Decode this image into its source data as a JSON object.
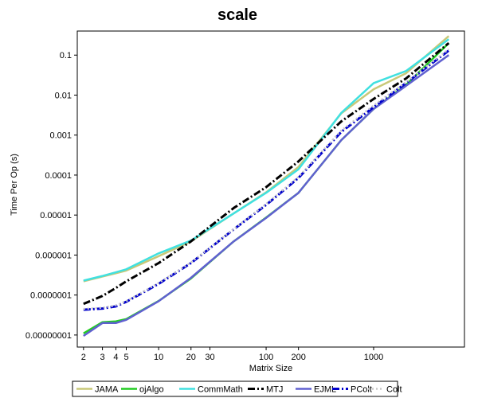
{
  "chart_data": {
    "type": "line",
    "title": "scale",
    "xlabel": "Matrix Size",
    "ylabel": "Time Per Op (s)",
    "x_scale": "log",
    "y_scale": "log",
    "xlim": [
      1.75,
      7000
    ],
    "ylim": [
      5e-09,
      0.4
    ],
    "grid": false,
    "legend_position": "bottom",
    "x_ticks": [
      {
        "value": 2,
        "label": "2"
      },
      {
        "value": 3,
        "label": "3"
      },
      {
        "value": 4,
        "label": "4"
      },
      {
        "value": 5,
        "label": "5"
      },
      {
        "value": 10,
        "label": "10"
      },
      {
        "value": 20,
        "label": "20"
      },
      {
        "value": 30,
        "label": "30"
      },
      {
        "value": 100,
        "label": "100"
      },
      {
        "value": 200,
        "label": "200"
      },
      {
        "value": 1000,
        "label": "1000"
      }
    ],
    "y_ticks": [
      {
        "value": 0.1,
        "label": "0.1"
      },
      {
        "value": 0.01,
        "label": "0.01"
      },
      {
        "value": 0.001,
        "label": "0.001"
      },
      {
        "value": 0.0001,
        "label": "0.0001"
      },
      {
        "value": 1e-05,
        "label": "0.00001"
      },
      {
        "value": 1e-06,
        "label": "0.000001"
      },
      {
        "value": 1e-07,
        "label": "0.0000001"
      },
      {
        "value": 1e-08,
        "label": "0.00000001"
      }
    ],
    "x": [
      2,
      3,
      4,
      5,
      10,
      20,
      50,
      100,
      200,
      500,
      1000,
      2000,
      5000
    ],
    "series": [
      {
        "name": "JAMA",
        "color": "#c8c878",
        "dash": "solid",
        "values": [
          2.2e-07,
          2.9e-07,
          3.5e-07,
          4.1e-07,
          9.4e-07,
          2.2e-06,
          1.1e-05,
          3.7e-05,
          0.00016,
          0.0035,
          0.014,
          0.035,
          0.3
        ]
      },
      {
        "name": "ojAlgo",
        "color": "#22cc22",
        "dash": "solid",
        "values": [
          1.1e-08,
          2.1e-08,
          2.2e-08,
          2.5e-08,
          7.1e-08,
          2.6e-07,
          2.2e-06,
          8.7e-06,
          3.6e-05,
          0.00075,
          0.0045,
          0.018,
          0.2
        ]
      },
      {
        "name": "CommMath",
        "color": "#40e0e0",
        "dash": "solid",
        "values": [
          2.3e-07,
          3e-07,
          3.7e-07,
          4.4e-07,
          1.1e-06,
          2.3e-06,
          1.1e-05,
          3.6e-05,
          0.00014,
          0.0036,
          0.02,
          0.04,
          0.25
        ]
      },
      {
        "name": "MTJ",
        "color": "#000000",
        "dash": "dashdot",
        "values": [
          6e-08,
          9.5e-08,
          1.5e-07,
          2.2e-07,
          6.3e-07,
          2.2e-06,
          1.5e-05,
          5e-05,
          0.00022,
          0.0022,
          0.008,
          0.026,
          0.2
        ]
      },
      {
        "name": "EJML",
        "color": "#6060d0",
        "dash": "solid",
        "values": [
          9.5e-09,
          2e-08,
          2e-08,
          2.4e-08,
          7e-08,
          2.7e-07,
          2.2e-06,
          8.5e-06,
          3.6e-05,
          0.00075,
          0.0045,
          0.017,
          0.1
        ]
      },
      {
        "name": "PColt",
        "color": "#0000cc",
        "dash": "dashdot",
        "values": [
          4.3e-08,
          4.6e-08,
          5.2e-08,
          6.8e-08,
          1.9e-07,
          6.3e-07,
          4.4e-06,
          1.8e-05,
          8.5e-05,
          0.0012,
          0.005,
          0.02,
          0.13
        ]
      },
      {
        "name": "Colt",
        "color": "#c8c8c8",
        "dash": "dotted",
        "values": [
          4.5e-08,
          4.8e-08,
          5.5e-08,
          7e-08,
          2e-07,
          6.5e-07,
          4.5e-06,
          1.9e-05,
          9e-05,
          0.0013,
          0.0055,
          0.021,
          0.14
        ]
      }
    ]
  }
}
